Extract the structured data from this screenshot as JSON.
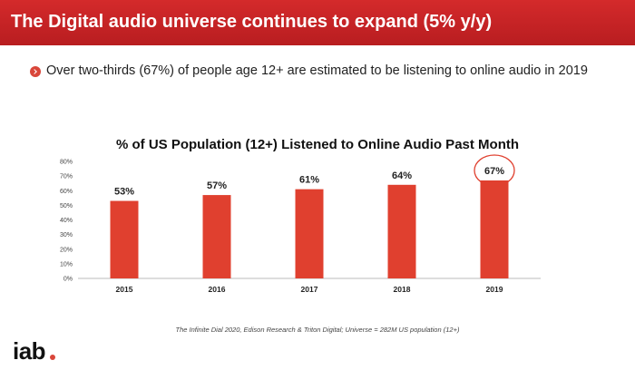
{
  "header": {
    "title": "The Digital audio universe continues to expand (5% y/y)"
  },
  "bullet": {
    "text": "Over two-thirds (67%) of people age 12+ are estimated to be listening to online audio in 2019"
  },
  "chart_data": {
    "type": "bar",
    "title": "% of US Population (12+) Listened to Online Audio Past Month",
    "categories": [
      "2015",
      "2016",
      "2017",
      "2018",
      "2019"
    ],
    "values": [
      53,
      57,
      61,
      64,
      67
    ],
    "data_labels": [
      "53%",
      "57%",
      "61%",
      "64%",
      "67%"
    ],
    "y_ticks": [
      "0%",
      "10%",
      "20%",
      "30%",
      "40%",
      "50%",
      "60%",
      "70%",
      "80%"
    ],
    "ylim": [
      0,
      80
    ],
    "xlabel": "",
    "ylabel": "",
    "grid": false,
    "highlight_category": "2019",
    "bar_color": "#e0402f",
    "highlight_color": "#e0402f"
  },
  "footer": {
    "source": "The Infinite Dial 2020, Edison Research & Triton Digital; Universe = 282M US population (12+)"
  },
  "logo": {
    "text": "iab"
  },
  "colors": {
    "header_bg": "#c42325",
    "accent": "#d9463a"
  }
}
